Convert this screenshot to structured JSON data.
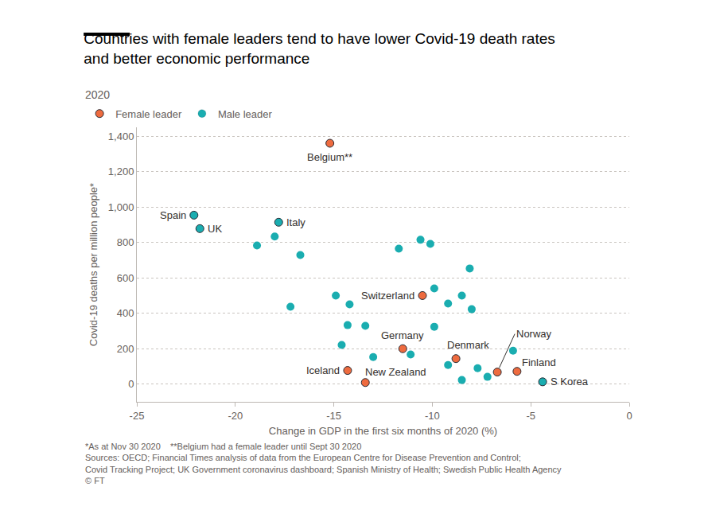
{
  "chart_data": {
    "type": "scatter",
    "title": "Countries with female leaders tend to have lower Covid-19 death rates and better economic performance",
    "subtitle": "2020",
    "x_label": "Change in GDP in the first six months of 2020 (%)",
    "y_label": "Covid-19 deaths per million people*",
    "notes": [
      "*As at Nov 30 2020    **Belgium had a female leader until Sept 30 2020",
      "Sources: OECD; Financial Times analysis of data from the European Centre for Disease Prevention and Control;",
      "Covid Tracking Project; UK Government coronavirus dashboard; Spanish Ministry of Health; Swedish Public Health Agency",
      "© FT"
    ],
    "series": [
      {
        "name": "Female leader",
        "color": "#ee6b3f",
        "marker": "circle",
        "x": [
          -15.2,
          -10.5,
          -11.5,
          -8.8,
          -6.7,
          -5.7,
          -14.3,
          -13.4
        ],
        "y": [
          1360,
          500,
          200,
          144,
          68,
          72,
          77,
          9
        ],
        "labels": [
          "Belgium**",
          "Switzerland",
          "Germany",
          "Denmark",
          "Norway",
          "Finland",
          "Iceland",
          "New Zealand"
        ]
      },
      {
        "name": "Male leader",
        "color": "#1aadb0",
        "marker": "circle",
        "x": [
          -22.1,
          -21.8,
          -17.8,
          -4.4,
          -18.9,
          -18.0,
          -16.7,
          -17.2,
          -14.9,
          -14.2,
          -14.3,
          -14.6,
          -13.4,
          -13.0,
          -11.7,
          -11.1,
          -10.6,
          -10.1,
          -9.9,
          -9.9,
          -9.2,
          -8.5,
          -8.1,
          -8.0,
          -9.2,
          -7.7,
          -7.2,
          -8.5,
          -5.9
        ],
        "y": [
          954,
          878,
          914,
          13,
          783,
          833,
          729,
          437,
          500,
          450,
          333,
          221,
          329,
          153,
          765,
          167,
          815,
          792,
          540,
          324,
          455,
          500,
          653,
          423,
          108,
          90,
          41,
          23,
          189
        ],
        "labels": [
          "Spain",
          "UK",
          "Italy",
          "S Korea",
          null,
          null,
          null,
          null,
          null,
          null,
          null,
          null,
          null,
          null,
          null,
          null,
          null,
          null,
          null,
          null,
          null,
          null,
          null,
          null,
          null,
          null,
          null,
          null,
          null
        ]
      }
    ],
    "xlim": [
      -25,
      0
    ],
    "xticks": [
      -25,
      -20,
      -15,
      -10,
      -5,
      0
    ],
    "ylim": [
      -100,
      1450
    ],
    "yticks": [
      0,
      200,
      400,
      600,
      800,
      {
        "value": 1000,
        "label": "1,000"
      },
      {
        "value": 1200,
        "label": "1,200"
      },
      {
        "value": 1400,
        "label": "1,400"
      }
    ],
    "grid": true,
    "legend": "top-left"
  }
}
